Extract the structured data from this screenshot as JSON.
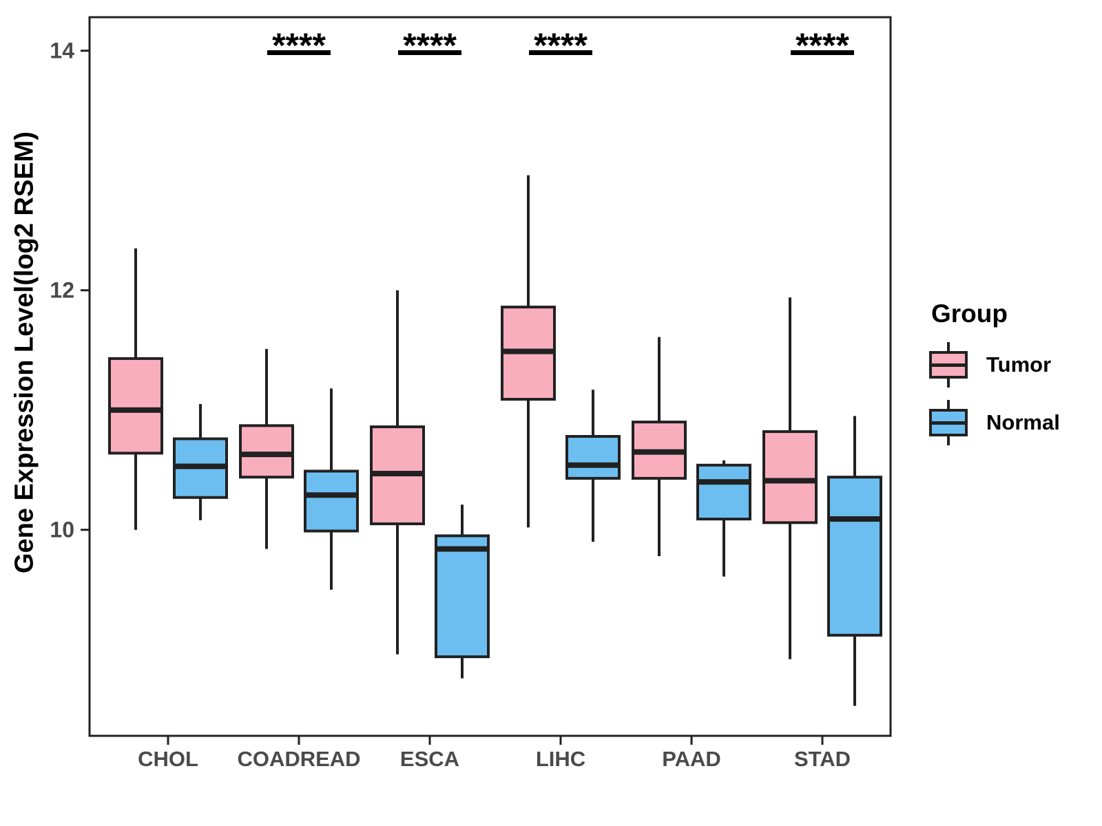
{
  "figure": {
    "y_axis_title": "Gene Expression Level(log2 RSEM)",
    "legend": {
      "title": "Group",
      "entries": [
        {
          "label": "Tumor",
          "color": "#F9AEBD"
        },
        {
          "label": "Normal",
          "color": "#6DBEF0"
        }
      ]
    }
  },
  "chart_data": {
    "type": "boxplot",
    "title": "",
    "xlabel": "",
    "ylabel": "Gene Expression Level(log2 RSEM)",
    "categories": [
      "CHOL",
      "COADREAD",
      "ESCA",
      "LIHC",
      "PAAD",
      "STAD"
    ],
    "y_ticks": [
      10,
      12,
      14
    ],
    "ylim": [
      8.28,
      14.28
    ],
    "grid": false,
    "legend_position": "right",
    "colors": {
      "tumor_fill": "#F9AEBD",
      "normal_fill": "#6DBEF0",
      "stroke": "#212121",
      "tick_label": "#4a4a4a"
    },
    "series": [
      {
        "name": "Tumor",
        "color": "#F9AEBD",
        "boxes": [
          {
            "category": "CHOL",
            "min": 10.0,
            "q1": 10.64,
            "median": 11.0,
            "q3": 11.43,
            "max": 12.35
          },
          {
            "category": "COADREAD",
            "min": 9.84,
            "q1": 10.44,
            "median": 10.63,
            "q3": 10.87,
            "max": 11.51
          },
          {
            "category": "ESCA",
            "min": 8.96,
            "q1": 10.05,
            "median": 10.47,
            "q3": 10.86,
            "max": 12.0
          },
          {
            "category": "LIHC",
            "min": 10.02,
            "q1": 11.09,
            "median": 11.49,
            "q3": 11.86,
            "max": 12.96
          },
          {
            "category": "PAAD",
            "min": 9.78,
            "q1": 10.43,
            "median": 10.65,
            "q3": 10.9,
            "max": 11.61
          },
          {
            "category": "STAD",
            "min": 8.92,
            "q1": 10.06,
            "median": 10.41,
            "q3": 10.82,
            "max": 11.94
          }
        ]
      },
      {
        "name": "Normal",
        "color": "#6DBEF0",
        "boxes": [
          {
            "category": "CHOL",
            "min": 10.08,
            "q1": 10.27,
            "median": 10.53,
            "q3": 10.76,
            "max": 11.05
          },
          {
            "category": "COADREAD",
            "min": 9.5,
            "q1": 9.99,
            "median": 10.29,
            "q3": 10.49,
            "max": 11.18
          },
          {
            "category": "ESCA",
            "min": 8.76,
            "q1": 8.94,
            "median": 9.84,
            "q3": 9.95,
            "max": 10.21
          },
          {
            "category": "LIHC",
            "min": 9.9,
            "q1": 10.43,
            "median": 10.54,
            "q3": 10.78,
            "max": 11.17
          },
          {
            "category": "PAAD",
            "min": 9.61,
            "q1": 10.09,
            "median": 10.4,
            "q3": 10.54,
            "max": 10.58
          },
          {
            "category": "STAD",
            "min": 8.53,
            "q1": 9.12,
            "median": 10.09,
            "q3": 10.44,
            "max": 10.95
          }
        ]
      }
    ],
    "significance": [
      {
        "category": "COADREAD",
        "label": "****"
      },
      {
        "category": "ESCA",
        "label": "****"
      },
      {
        "category": "LIHC",
        "label": "****"
      },
      {
        "category": "STAD",
        "label": "****"
      }
    ]
  }
}
